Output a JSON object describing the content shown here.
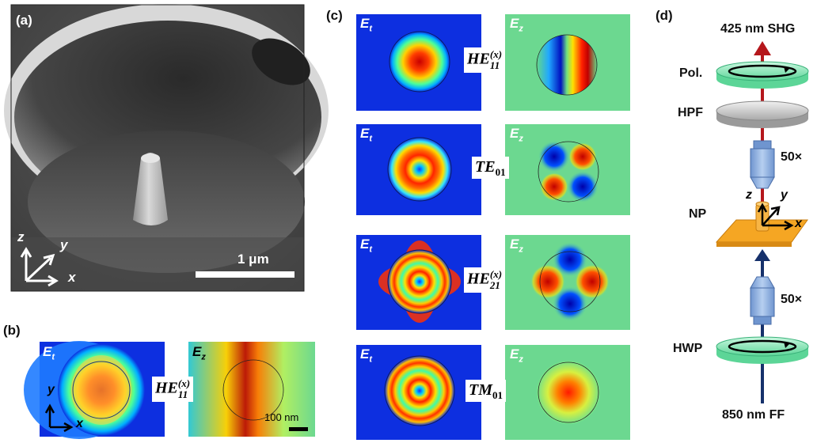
{
  "panels": {
    "a": {
      "label": "(a)",
      "scale_bar": "1 μm",
      "axis_z": "z",
      "axis_y": "y",
      "axis_x": "x"
    },
    "b": {
      "label": "(b)",
      "et": "E",
      "et_sub": "t",
      "ez": "E",
      "ez_sub": "z",
      "mode_main": "HE",
      "mode_sup": "(x)",
      "mode_sub": "11",
      "axis_y": "y",
      "axis_x": "x",
      "scale_bar": "100 nm"
    },
    "c": {
      "label": "(c)",
      "rows": [
        {
          "et": "E",
          "et_sub": "t",
          "ez": "E",
          "ez_sub": "z",
          "mode_main": "HE",
          "mode_sup": "(x)",
          "mode_sub": "11"
        },
        {
          "et": "E",
          "et_sub": "t",
          "ez": "E",
          "ez_sub": "z",
          "mode_main": "TE",
          "mode_sup": "",
          "mode_sub": "01"
        },
        {
          "et": "E",
          "et_sub": "t",
          "ez": "E",
          "ez_sub": "z",
          "mode_main": "HE",
          "mode_sup": "(x)",
          "mode_sub": "21"
        },
        {
          "et": "E",
          "et_sub": "t",
          "ez": "E",
          "ez_sub": "z",
          "mode_main": "TM",
          "mode_sup": "",
          "mode_sub": "01"
        }
      ]
    },
    "d": {
      "label": "(d)",
      "shg": "425 nm SHG",
      "pol": "Pol.",
      "hpf": "HPF",
      "obj_top": "50×",
      "np": "NP",
      "axis_z": "z",
      "axis_y": "y",
      "axis_x": "x",
      "obj_bottom": "50×",
      "hwp": "HWP",
      "ff": "850 nm FF",
      "colors": {
        "shg_beam": "#b5171c",
        "ff_beam": "#16316b",
        "waveplate": "#7fe3b0",
        "np_substrate": "#f5a623",
        "objective": "#8fb3e0"
      }
    }
  }
}
